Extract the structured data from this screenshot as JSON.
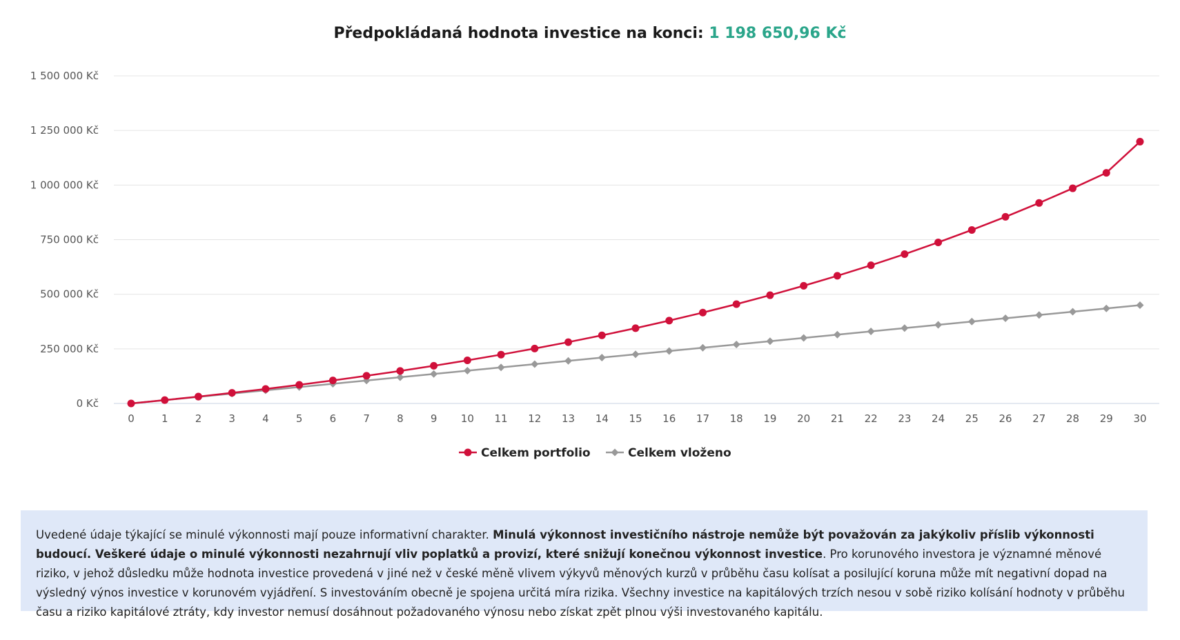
{
  "header": {
    "title_label": "Předpokládaná hodnota investice na konci:",
    "title_value": "1 198 650,96 Kč"
  },
  "chart_data": {
    "type": "line",
    "title": "Předpokládaná hodnota investice na konci: 1 198 650,96 Kč",
    "x": [
      0,
      1,
      2,
      3,
      4,
      5,
      6,
      7,
      8,
      9,
      10,
      11,
      12,
      13,
      14,
      15,
      16,
      17,
      18,
      19,
      20,
      21,
      22,
      23,
      24,
      25,
      26,
      27,
      28,
      29,
      30
    ],
    "ylim": [
      0,
      1500000
    ],
    "y_ticks": [
      0,
      250000,
      500000,
      750000,
      1000000,
      1250000,
      1500000
    ],
    "y_tick_labels": [
      "0 Kč",
      "250 000 Kč",
      "500 000 Kč",
      "750 000 Kč",
      "1 000 000 Kč",
      "1 250 000 Kč",
      "1 500 000 Kč"
    ],
    "grid": true,
    "legend_position": "bottom-center",
    "series": [
      {
        "name": "Celkem portfolio",
        "color": "#d0103a",
        "marker": "circle",
        "values": [
          0,
          15300,
          31400,
          48400,
          66300,
          85300,
          105400,
          126600,
          148900,
          172400,
          197300,
          223600,
          251400,
          280800,
          311800,
          344600,
          379400,
          416000,
          454700,
          495600,
          538800,
          584500,
          632700,
          683600,
          737500,
          794400,
          854500,
          918000,
          985100,
          1056000,
          1198650.96
        ]
      },
      {
        "name": "Celkem vloženo",
        "color": "#999999",
        "marker": "diamond",
        "values": [
          0,
          15000,
          30000,
          45000,
          60000,
          75000,
          90000,
          105000,
          120000,
          135000,
          150000,
          165000,
          180000,
          195000,
          210000,
          225000,
          240000,
          255000,
          270000,
          285000,
          300000,
          315000,
          330000,
          345000,
          360000,
          375000,
          390000,
          405000,
          420000,
          435000,
          450000
        ]
      }
    ]
  },
  "disclaimer": {
    "text1": "Uvedené údaje týkající se minulé výkonnosti mají pouze informativní charakter. ",
    "bold1": "Minulá výkonnost investičního nástroje nemůže být považován za jakýkoliv příslib výkonnosti budoucí. Veškeré údaje o minulé výkonnosti nezahrnují vliv poplatků a provizí, které snižují konečnou výkonnost investice",
    "text2": ". Pro korunového investora je významné měnové riziko, v jehož důsledku může hodnota investice provedená v jiné než v české měně vlivem výkyvů měnových kurzů v průběhu času kolísat a posilující koruna může mít negativní dopad na výsledný výnos investice v korunovém vyjádření. S investováním obecně je spojena určitá míra rizika. Všechny investice na kapitálových trzích nesou v sobě riziko kolísání hodnoty v průběhu času a riziko kapitálové ztráty, kdy investor nemusí dosáhnout požadovaného výnosu nebo získat zpět plnou výši investovaného kapitálu."
  }
}
